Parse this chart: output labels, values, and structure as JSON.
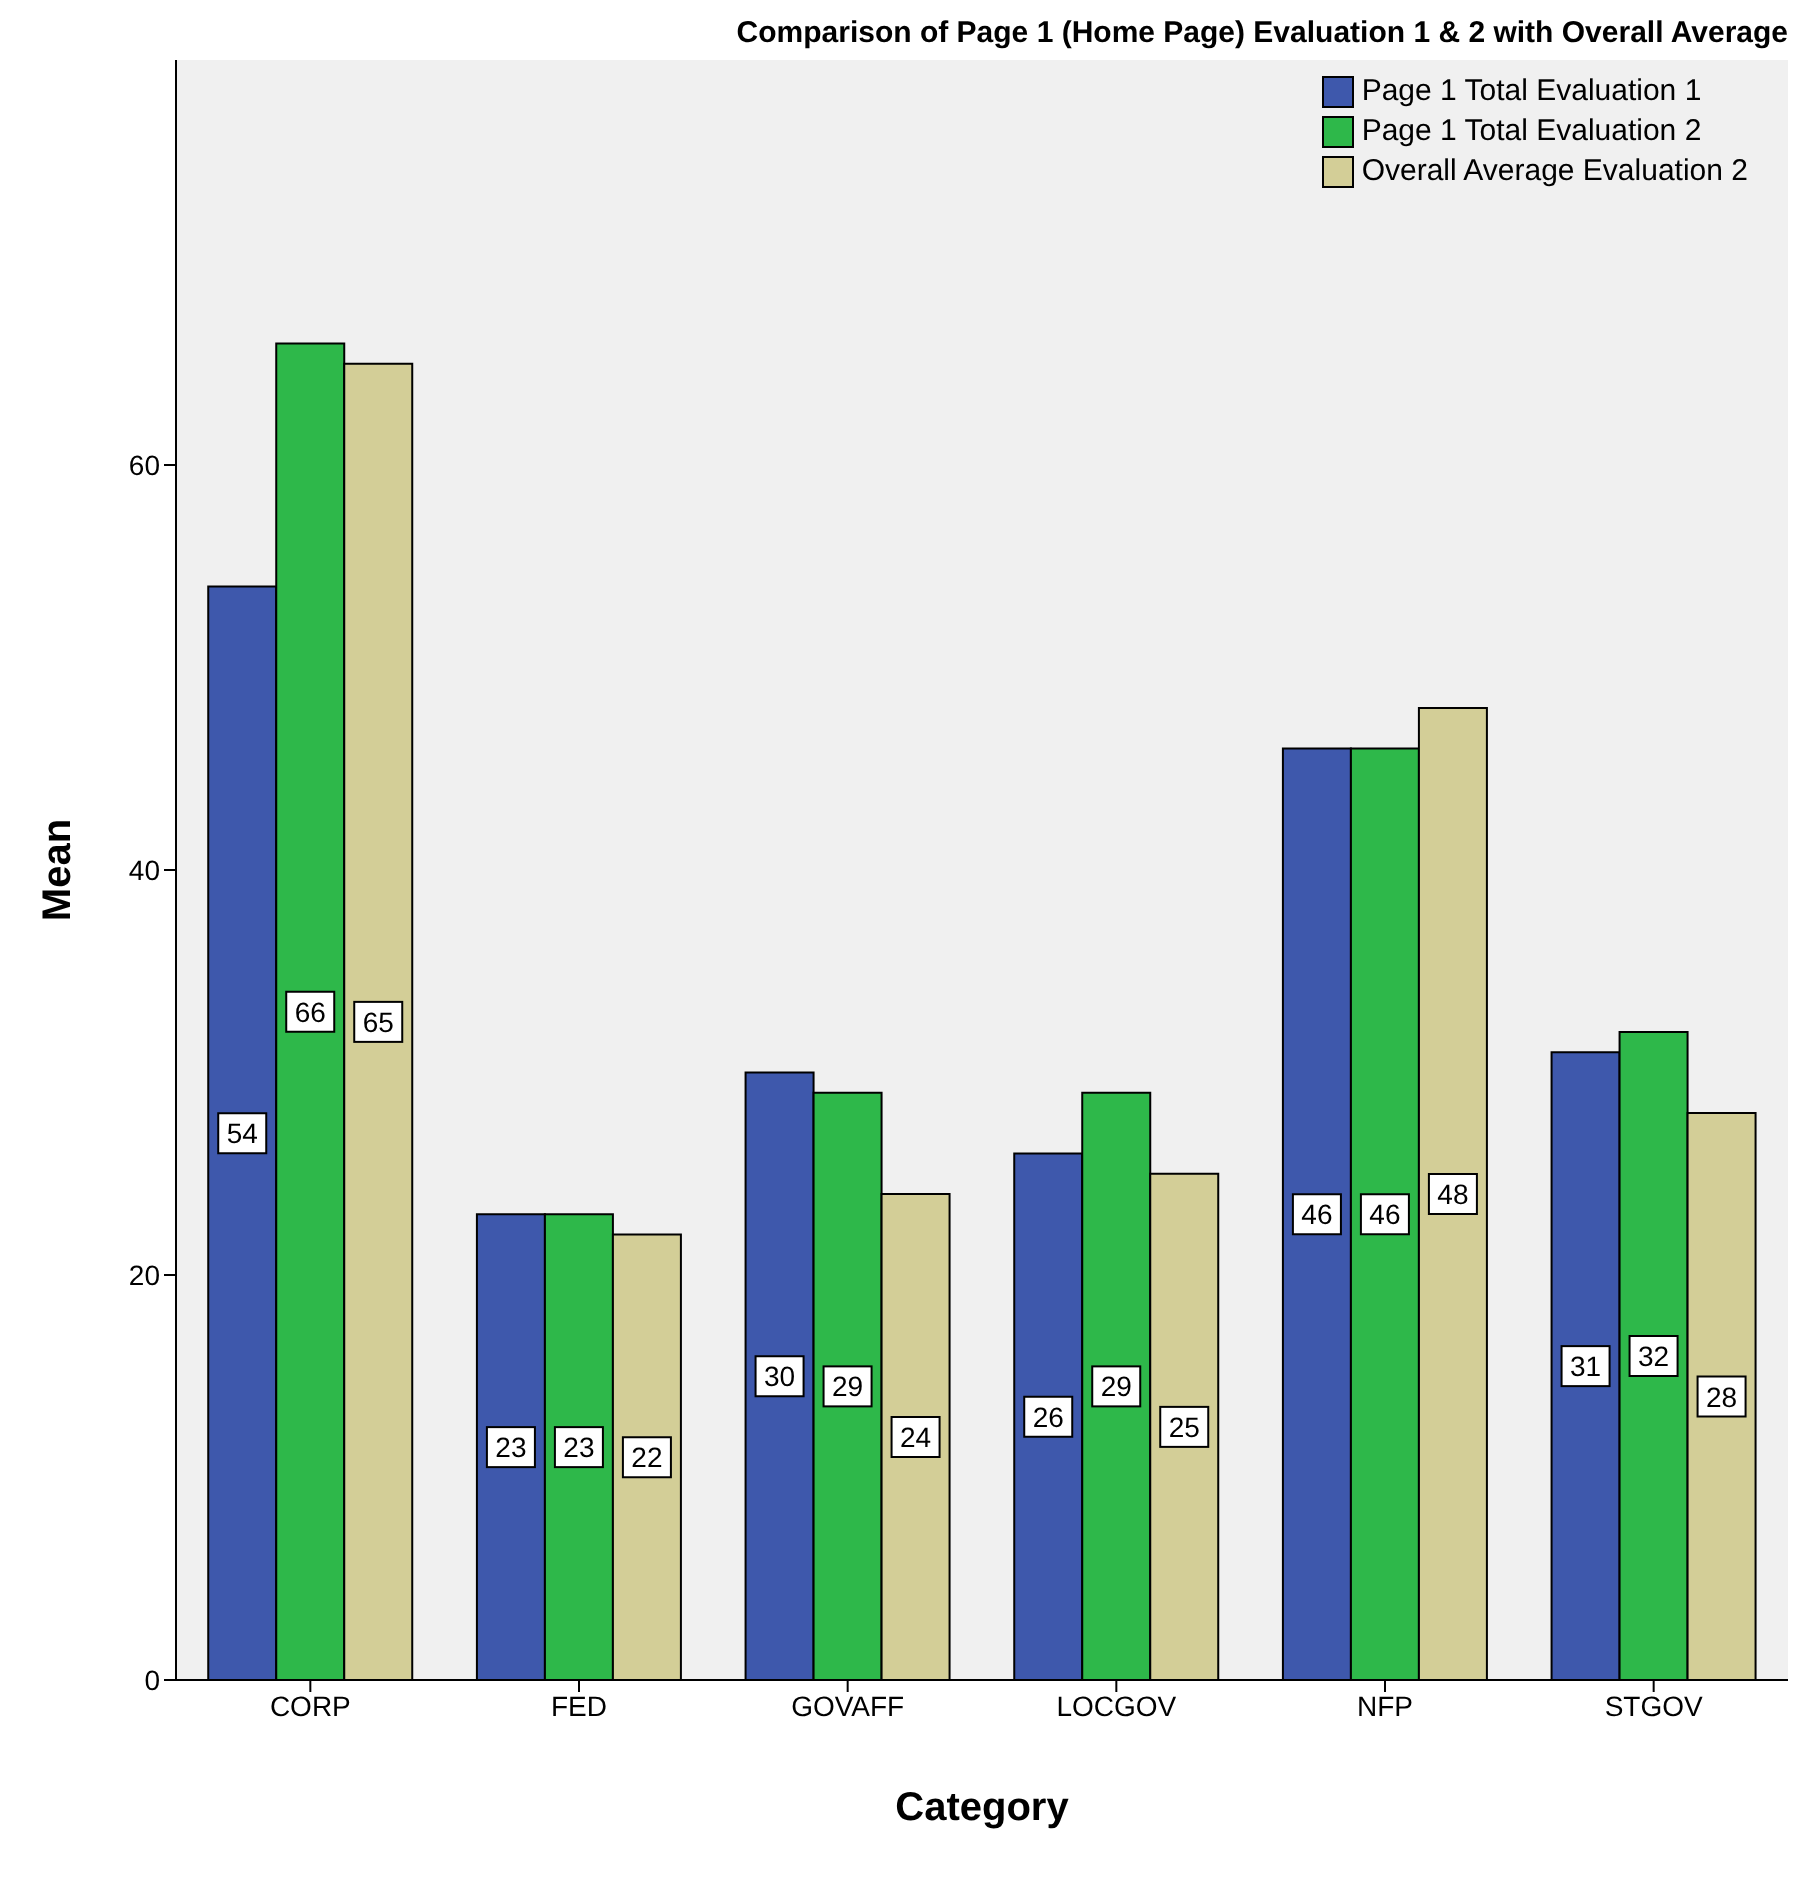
{
  "chart_data": {
    "type": "bar",
    "title": "Comparison of Page 1 (Home Page) Evaluation 1 & 2 with Overall Average",
    "xlabel": "Category",
    "ylabel": "Mean",
    "categories": [
      "CORP",
      "FED",
      "GOVAFF",
      "LOCGOV",
      "NFP",
      "STGOV"
    ],
    "series": [
      {
        "name": "Page 1 Total Evaluation 1",
        "color": "#3e58ac",
        "values": [
          54,
          23,
          30,
          26,
          46,
          31
        ]
      },
      {
        "name": "Page 1 Total Evaluation 2",
        "color": "#2eb84a",
        "values": [
          66,
          23,
          29,
          29,
          46,
          32
        ]
      },
      {
        "name": "Overall Average Evaluation 2",
        "color": "#d3ce97",
        "values": [
          65,
          22,
          24,
          25,
          48,
          28
        ]
      }
    ],
    "ylim": [
      0,
      80
    ],
    "yticks": [
      0,
      20,
      40,
      60
    ],
    "legend": "top right",
    "data_labels": true
  }
}
